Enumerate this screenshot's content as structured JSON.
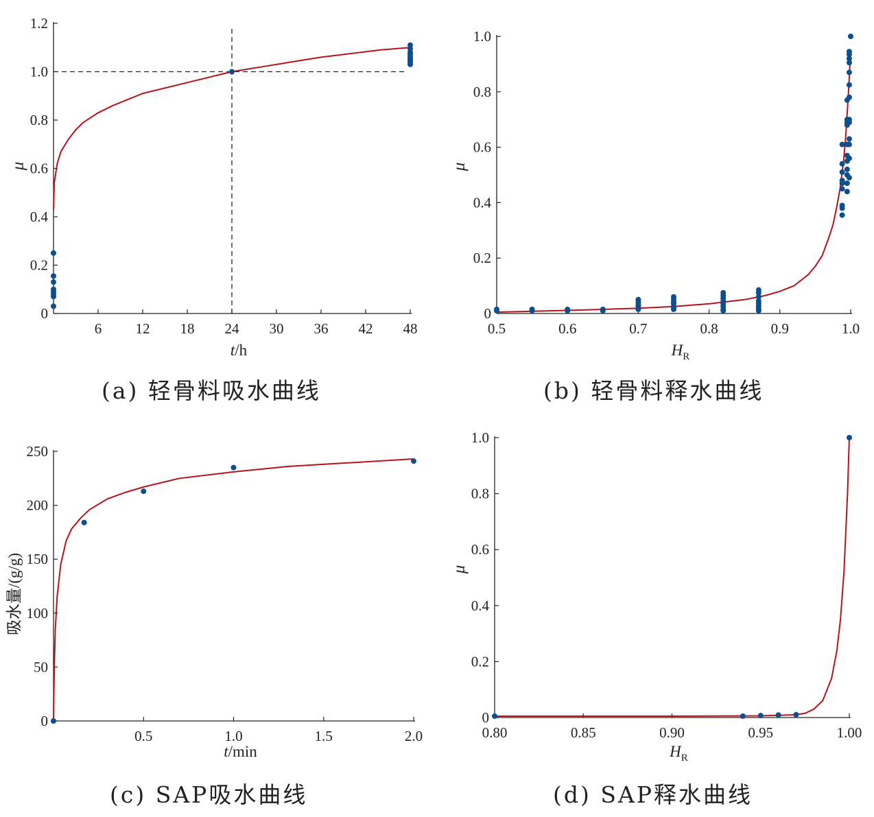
{
  "style": {
    "curve_color": "#b5121b",
    "point_color": "#0c4f8c",
    "axis_color": "#222222"
  },
  "captions": {
    "a": "(a) 轻骨料吸水曲线",
    "b": "(b) 轻骨料释水曲线",
    "c": "(c) SAP吸水曲线",
    "d": "(d) SAP释水曲线"
  },
  "chart_data": [
    {
      "id": "a",
      "type": "scatter",
      "caption": "(a) 轻骨料吸水曲线",
      "xlabel_italic": "t",
      "xlabel_rest": "/h",
      "ylabel": "μ",
      "xlim": [
        0,
        48
      ],
      "ylim": [
        0,
        1.2
      ],
      "xticks": [
        6,
        12,
        18,
        24,
        30,
        36,
        42,
        48
      ],
      "xtick_labels": [
        "6",
        "12",
        "18",
        "24",
        "30",
        "36",
        "42",
        "48"
      ],
      "yticks": [
        0,
        0.2,
        0.4,
        0.6,
        0.8,
        1.0,
        1.2
      ],
      "ytick_labels": [
        "0",
        "0.2",
        "0.4",
        "0.6",
        "0.8",
        "1.0",
        "1.2"
      ],
      "reference_lines": {
        "x": 24,
        "y": 1.0,
        "style": "dashed"
      },
      "fit_curve": {
        "x": [
          0.01,
          0.1,
          0.5,
          1,
          2,
          3,
          4,
          6,
          8,
          12,
          16,
          20,
          24,
          28,
          32,
          36,
          40,
          44,
          48
        ],
        "y": [
          0.43,
          0.54,
          0.62,
          0.67,
          0.72,
          0.76,
          0.79,
          0.83,
          0.86,
          0.91,
          0.94,
          0.97,
          1.0,
          1.02,
          1.04,
          1.06,
          1.075,
          1.09,
          1.1
        ]
      },
      "points": {
        "x": [
          0,
          0,
          0,
          0,
          0,
          0,
          0,
          0,
          24,
          48,
          48,
          48,
          48,
          48,
          48,
          48,
          48,
          48
        ],
        "y": [
          0.25,
          0.155,
          0.13,
          0.1,
          0.09,
          0.08,
          0.07,
          0.03,
          1.0,
          1.11,
          1.095,
          1.08,
          1.07,
          1.06,
          1.05,
          1.045,
          1.04,
          1.03
        ]
      }
    },
    {
      "id": "b",
      "type": "scatter",
      "caption": "(b) 轻骨料释水曲线",
      "xlabel_italic": "H",
      "xlabel_sub": "R",
      "ylabel": "μ",
      "xlim": [
        0.5,
        1.0
      ],
      "ylim": [
        0,
        1.0
      ],
      "xticks": [
        0.5,
        0.6,
        0.7,
        0.8,
        0.9,
        1.0
      ],
      "xtick_labels": [
        "0.5",
        "0.6",
        "0.7",
        "0.8",
        "0.9",
        "1.0"
      ],
      "yticks": [
        0,
        0.2,
        0.4,
        0.6,
        0.8,
        1.0
      ],
      "ytick_labels": [
        "0",
        "0.2",
        "0.4",
        "0.6",
        "0.8",
        "1.0"
      ],
      "fit_curve": {
        "x": [
          0.5,
          0.55,
          0.6,
          0.65,
          0.7,
          0.75,
          0.8,
          0.85,
          0.88,
          0.9,
          0.92,
          0.94,
          0.95,
          0.96,
          0.97,
          0.975,
          0.98,
          0.985,
          0.99,
          0.993,
          0.996,
          0.998,
          1.0
        ],
        "y": [
          0.005,
          0.008,
          0.011,
          0.015,
          0.019,
          0.025,
          0.035,
          0.05,
          0.065,
          0.08,
          0.1,
          0.14,
          0.17,
          0.21,
          0.28,
          0.32,
          0.38,
          0.45,
          0.55,
          0.64,
          0.76,
          0.85,
          0.95
        ]
      },
      "points": {
        "x": [
          0.5,
          0.5,
          0.55,
          0.55,
          0.6,
          0.6,
          0.65,
          0.65,
          0.7,
          0.7,
          0.7,
          0.7,
          0.7,
          0.7,
          0.75,
          0.75,
          0.75,
          0.75,
          0.75,
          0.75,
          0.75,
          0.82,
          0.82,
          0.82,
          0.82,
          0.82,
          0.82,
          0.82,
          0.82,
          0.87,
          0.87,
          0.87,
          0.87,
          0.87,
          0.87,
          0.87,
          0.87,
          0.988,
          0.988,
          0.988,
          0.988,
          0.988,
          0.988,
          0.988,
          0.988,
          0.988,
          0.995,
          0.995,
          0.995,
          0.995,
          0.995,
          0.995,
          0.995,
          0.995,
          0.995,
          0.995,
          0.995,
          0.995,
          0.998,
          0.998,
          0.998,
          0.998,
          0.998,
          0.998,
          0.998,
          0.998,
          0.998,
          0.998,
          0.998,
          0.998,
          0.998,
          1.0
        ],
        "y": [
          0.01,
          0.015,
          0.01,
          0.015,
          0.01,
          0.015,
          0.01,
          0.015,
          0.05,
          0.04,
          0.03,
          0.025,
          0.02,
          0.015,
          0.06,
          0.05,
          0.04,
          0.035,
          0.025,
          0.02,
          0.015,
          0.075,
          0.065,
          0.055,
          0.045,
          0.035,
          0.025,
          0.015,
          0.01,
          0.085,
          0.075,
          0.06,
          0.045,
          0.035,
          0.025,
          0.015,
          0.01,
          0.61,
          0.54,
          0.51,
          0.48,
          0.47,
          0.45,
          0.39,
          0.38,
          0.355,
          0.77,
          0.7,
          0.69,
          0.68,
          0.61,
          0.57,
          0.55,
          0.52,
          0.5,
          0.47,
          0.44,
          0.61,
          0.945,
          0.935,
          0.92,
          0.905,
          0.87,
          0.825,
          0.78,
          0.7,
          0.69,
          0.63,
          0.61,
          0.56,
          0.49,
          1.0
        ]
      }
    },
    {
      "id": "c",
      "type": "scatter",
      "caption": "(c) SAP吸水曲线",
      "xlabel_italic": "t",
      "xlabel_rest": "/min",
      "ylabel": "吸水量/(g/g)",
      "xlim": [
        0,
        2.0
      ],
      "ylim": [
        0,
        250
      ],
      "xticks": [
        0.5,
        1.0,
        1.5,
        2.0
      ],
      "xtick_labels": [
        "0.5",
        "1.0",
        "1.5",
        "2.0"
      ],
      "yticks": [
        0,
        50,
        100,
        150,
        200,
        250
      ],
      "ytick_labels": [
        "0",
        "50",
        "100",
        "150",
        "200",
        "250"
      ],
      "fit_curve": {
        "x": [
          0.0,
          0.002,
          0.005,
          0.01,
          0.02,
          0.04,
          0.07,
          0.1,
          0.15,
          0.2,
          0.3,
          0.4,
          0.5,
          0.7,
          1.0,
          1.3,
          1.6,
          2.0
        ],
        "y": [
          0,
          25,
          55,
          85,
          115,
          145,
          167,
          178,
          188,
          196,
          206,
          212,
          217,
          225,
          231,
          236,
          239,
          243
        ]
      },
      "points": {
        "x": [
          0,
          0.17,
          0.5,
          1.0,
          2.0
        ],
        "y": [
          0,
          184,
          213,
          235,
          241
        ]
      }
    },
    {
      "id": "d",
      "type": "scatter",
      "caption": "(d) SAP释水曲线",
      "xlabel_italic": "H",
      "xlabel_sub": "R",
      "ylabel": "μ",
      "xlim": [
        0.8,
        1.0
      ],
      "ylim": [
        0,
        1.0
      ],
      "xticks": [
        0.8,
        0.85,
        0.9,
        0.95,
        1.0
      ],
      "xtick_labels": [
        "0.80",
        "0.85",
        "0.90",
        "0.95",
        "1.00"
      ],
      "yticks": [
        0,
        0.2,
        0.4,
        0.6,
        0.8,
        1.0
      ],
      "ytick_labels": [
        "0",
        "0.2",
        "0.4",
        "0.6",
        "0.8",
        "1.0"
      ],
      "fit_curve": {
        "x": [
          0.8,
          0.85,
          0.9,
          0.95,
          0.97,
          0.975,
          0.98,
          0.985,
          0.99,
          0.993,
          0.995,
          0.997,
          0.999,
          1.0
        ],
        "y": [
          0.005,
          0.005,
          0.005,
          0.006,
          0.01,
          0.015,
          0.03,
          0.06,
          0.14,
          0.24,
          0.35,
          0.52,
          0.8,
          1.0
        ]
      },
      "points": {
        "x": [
          0.8,
          0.94,
          0.95,
          0.96,
          0.97,
          1.0
        ],
        "y": [
          0.005,
          0.005,
          0.007,
          0.009,
          0.01,
          1.0
        ]
      }
    }
  ]
}
